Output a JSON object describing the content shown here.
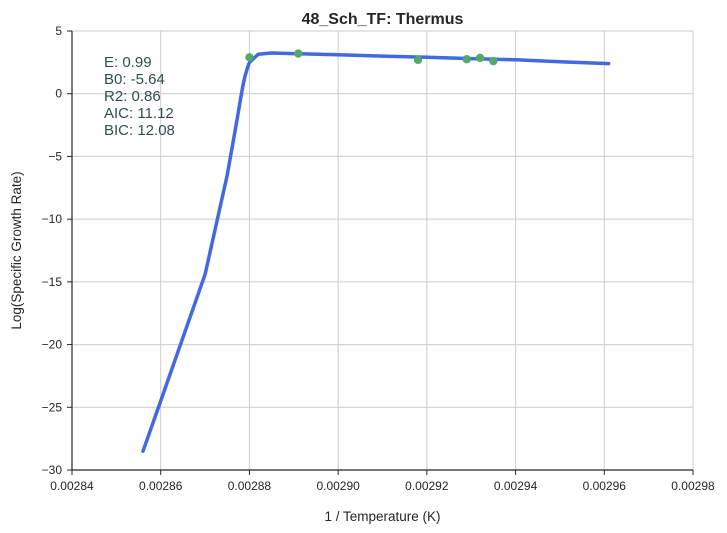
{
  "chart_data": {
    "type": "line",
    "title": "48_Sch_TF: Thermus",
    "xlabel": "1 / Temperature (K)",
    "ylabel": "Log(Specific Growth Rate)",
    "xlim": [
      0.00284,
      0.00298
    ],
    "ylim": [
      -30,
      5
    ],
    "xticks": [
      "0.00284",
      "0.00286",
      "0.00288",
      "0.00290",
      "0.00292",
      "0.00294",
      "0.00296",
      "0.00298"
    ],
    "xtick_values": [
      0.00284,
      0.00286,
      0.00288,
      0.0029,
      0.00292,
      0.00294,
      0.00296,
      0.00298
    ],
    "yticks": [
      "5",
      "0",
      "−5",
      "−10",
      "−15",
      "−20",
      "−25",
      "−30"
    ],
    "ytick_values": [
      5,
      0,
      -5,
      -10,
      -15,
      -20,
      -25,
      -30
    ],
    "grid": true,
    "annotations": [
      "E:  0.99",
      "B0:  -5.64",
      "R2:  0.86",
      "AIC: 11.12",
      "BIC: 12.08"
    ],
    "colors": {
      "fit": "#4169e1",
      "points": "#55a868",
      "grid": "#cccccc",
      "axis": "#262626",
      "annotation": "#2f4f4f"
    },
    "series": [
      {
        "kind": "line",
        "x": [
          0.002856,
          0.00286,
          0.00287,
          0.002875,
          0.002877,
          0.002878,
          0.0028785,
          0.002879,
          0.0028795,
          0.00288,
          0.002882,
          0.002885,
          0.00289,
          0.0029,
          0.00291,
          0.00292,
          0.00293,
          0.00294,
          0.00295,
          0.002961
        ],
        "y": [
          -28.5,
          -24.5,
          -14.4,
          -6.5,
          -2.5,
          -0.4,
          0.6,
          1.4,
          2.0,
          2.5,
          3.15,
          3.25,
          3.2,
          3.1,
          3.0,
          2.9,
          2.8,
          2.7,
          2.55,
          2.4
        ]
      },
      {
        "kind": "scatter",
        "x": [
          0.00288,
          0.002891,
          0.002918,
          0.002929,
          0.002932,
          0.002935
        ],
        "y": [
          2.9,
          3.2,
          2.7,
          2.75,
          2.85,
          2.6
        ]
      }
    ]
  }
}
